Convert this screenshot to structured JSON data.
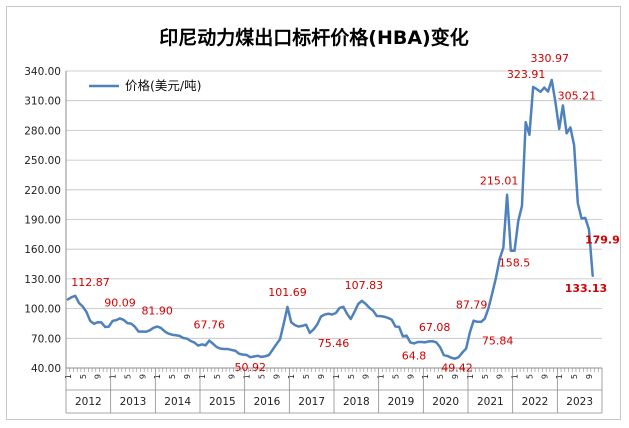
{
  "chart_data": {
    "type": "line",
    "title": "印尼动力煤出口标杆价格(HBA)变化",
    "legend": {
      "position": "top-left",
      "label": "价格(美元/吨)"
    },
    "series": [
      {
        "name": "价格(美元/吨)",
        "color": "#4f81bd",
        "values": [
          109.29,
          111.58,
          112.87,
          105.61,
          102.12,
          96.65,
          87.56,
          84.65,
          86.21,
          86.04,
          81.44,
          81.75,
          87.55,
          88.35,
          90.09,
          88.56,
          85.33,
          84.87,
          81.69,
          76.7,
          76.89,
          76.61,
          78.08,
          80.56,
          81.9,
          80.44,
          77.01,
          74.81,
          73.6,
          73.05,
          72.45,
          70.29,
          69.69,
          67.26,
          65.7,
          62.65,
          63.84,
          62.92,
          67.76,
          64.48,
          61.08,
          59.59,
          59.19,
          59.14,
          58.21,
          57.39,
          54.43,
          53.51,
          53.2,
          50.92,
          51.62,
          52.32,
          51.2,
          51.87,
          53.0,
          58.37,
          63.93,
          69.07,
          84.89,
          101.69,
          86.23,
          83.32,
          81.9,
          82.51,
          83.81,
          75.46,
          78.95,
          83.97,
          92.03,
          93.99,
          94.8,
          94.04,
          95.54,
          100.69,
          101.86,
          94.75,
          89.53,
          96.61,
          104.65,
          107.83,
          104.81,
          100.89,
          97.9,
          92.51,
          92.41,
          91.8,
          90.57,
          88.85,
          81.86,
          81.48,
          71.92,
          72.67,
          65.79,
          64.8,
          66.27,
          66.3,
          65.93,
          66.89,
          67.08,
          65.77,
          61.11,
          52.98,
          52.16,
          50.34,
          49.42,
          51.0,
          55.71,
          59.65,
          75.84,
          87.79,
          86.68,
          86.57,
          89.74,
          100.33,
          115.35,
          130.99,
          150.03,
          161.63,
          215.01,
          158.5,
          158.5,
          188.38,
          203.69,
          288.4,
          275.64,
          323.91,
          321.59,
          319.0,
          323.24,
          319.22,
          330.97,
          308.2,
          281.48,
          305.21,
          277.05,
          283.0,
          265.26,
          206.56,
          191.0,
          191.61,
          179.9,
          133.13
        ]
      }
    ],
    "x_start": "2012-01",
    "x_months_shown": [
      "1",
      "5",
      "9"
    ],
    "years": [
      "2012",
      "2013",
      "2014",
      "2015",
      "2016",
      "2017",
      "2018",
      "2019",
      "2020",
      "2021",
      "2022",
      "2023"
    ],
    "yticks": [
      "40.00",
      "70.00",
      "100.00",
      "130.00",
      "160.00",
      "190.00",
      "220.00",
      "250.00",
      "280.00",
      "310.00",
      "340.00"
    ],
    "ylim": [
      40,
      340
    ],
    "grid": true,
    "annotations": [
      {
        "label": "112.87",
        "index": 2,
        "dx": -4,
        "dy": -10,
        "anchor": "start",
        "bold": false
      },
      {
        "label": "90.09",
        "index": 14,
        "dx": 0,
        "dy": -12,
        "anchor": "middle",
        "bold": false
      },
      {
        "label": "81.90",
        "index": 24,
        "dx": 0,
        "dy": -12,
        "anchor": "middle",
        "bold": false
      },
      {
        "label": "67.76",
        "index": 38,
        "dx": 0,
        "dy": -12,
        "anchor": "middle",
        "bold": false
      },
      {
        "label": "50.92",
        "index": 49,
        "dx": 0,
        "dy": 14,
        "anchor": "middle",
        "bold": false
      },
      {
        "label": "101.69",
        "index": 59,
        "dx": 0,
        "dy": -11,
        "anchor": "middle",
        "bold": false
      },
      {
        "label": "75.46",
        "index": 65,
        "dx": 8,
        "dy": 14,
        "anchor": "start",
        "bold": false
      },
      {
        "label": "107.83",
        "index": 79,
        "dx": 2,
        "dy": -12,
        "anchor": "middle",
        "bold": false
      },
      {
        "label": "64.8",
        "index": 93,
        "dx": 0,
        "dy": 16,
        "anchor": "middle",
        "bold": false
      },
      {
        "label": "67.08",
        "index": 98,
        "dx": 2,
        "dy": -10,
        "anchor": "middle",
        "bold": false
      },
      {
        "label": "49.42",
        "index": 104,
        "dx": 2,
        "dy": 13,
        "anchor": "middle",
        "bold": false
      },
      {
        "label": "87.79",
        "index": 109,
        "dx": -2,
        "dy": -12,
        "anchor": "middle",
        "bold": false
      },
      {
        "label": "75.84",
        "index": 108,
        "dx": 12,
        "dy": 12,
        "anchor": "start",
        "bold": false
      },
      {
        "label": "215.01",
        "index": 118,
        "dx": -8,
        "dy": -10,
        "anchor": "middle",
        "bold": false
      },
      {
        "label": "158.5",
        "index": 120,
        "dx": 0,
        "dy": 16,
        "anchor": "middle",
        "bold": false
      },
      {
        "label": "323.91",
        "index": 125,
        "dx": -7,
        "dy": -9,
        "anchor": "middle",
        "bold": false
      },
      {
        "label": "330.97",
        "index": 130,
        "dx": -2,
        "dy": -18,
        "anchor": "middle",
        "bold": false
      },
      {
        "label": "305.21",
        "index": 133,
        "dx": 14,
        "dy": -6,
        "anchor": "middle",
        "bold": false
      },
      {
        "label": "179.9",
        "index": 140,
        "dx": -4,
        "dy": 14,
        "anchor": "start",
        "bold": true
      },
      {
        "label": "133.13",
        "index": 141,
        "dx": -28,
        "dy": 16,
        "anchor": "start",
        "bold": true
      }
    ]
  }
}
